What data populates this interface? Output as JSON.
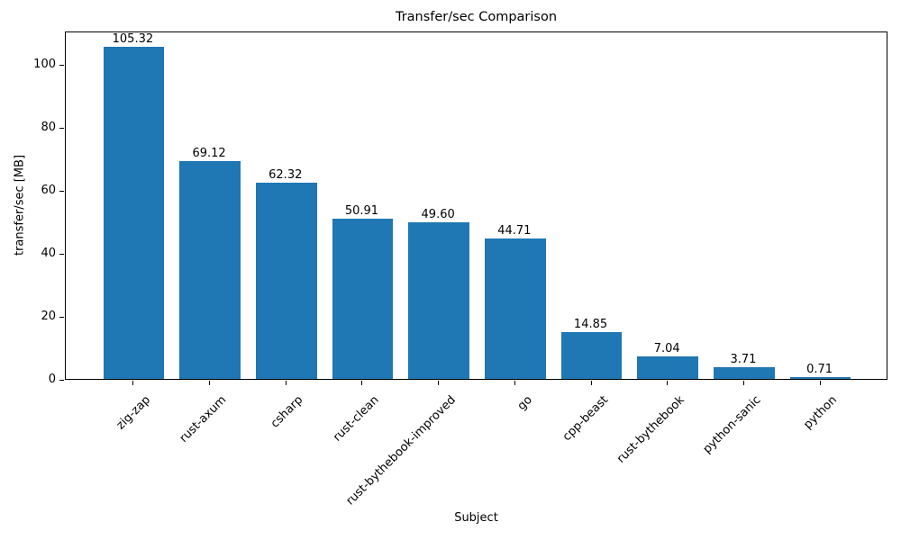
{
  "chart_data": {
    "type": "bar",
    "title": "Transfer/sec Comparison",
    "xlabel": "Subject",
    "ylabel": "transfer/sec [MB]",
    "categories": [
      "zig-zap",
      "rust-axum",
      "csharp",
      "rust-clean",
      "rust-bythebook-improved",
      "go",
      "cpp-beast",
      "rust-bythebook",
      "python-sanic",
      "python"
    ],
    "values": [
      105.32,
      69.12,
      62.32,
      50.91,
      49.6,
      44.71,
      14.85,
      7.04,
      3.71,
      0.71
    ],
    "value_labels": [
      "105.32",
      "69.12",
      "62.32",
      "50.91",
      "49.60",
      "44.71",
      "14.85",
      "7.04",
      "3.71",
      "0.71"
    ],
    "bar_color": "#1f77b4",
    "bar_width_units": 0.8,
    "ylim": [
      0,
      110.6
    ],
    "yticks": [
      0,
      20,
      40,
      60,
      80,
      100
    ],
    "grid": false,
    "legend": null,
    "xtick_rotation": 45
  }
}
